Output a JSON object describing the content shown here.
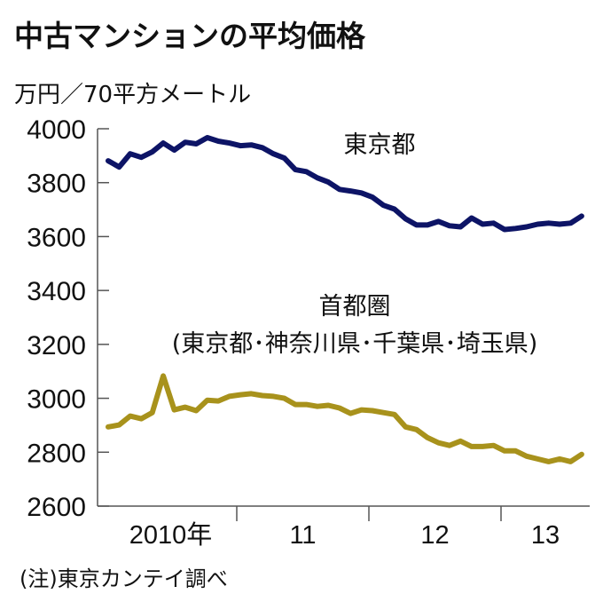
{
  "title": "中古マンションの平均価格",
  "unit_label": "万円／70平方メートル",
  "note": "(注)東京カンテイ調べ",
  "colors": {
    "tokyo": "#0d1466",
    "capital": "#a8921c",
    "axis": "#555555"
  },
  "chart_data": {
    "type": "line",
    "title": "中古マンションの平均価格",
    "ylabel": "万円／70平方メートル",
    "xlabel": "",
    "ylim": [
      2600,
      4000
    ],
    "yticks": [
      4000,
      3800,
      3600,
      3400,
      3200,
      3000,
      2800,
      2600
    ],
    "x_start": "2010-01",
    "x_unit": "month",
    "x_months_per_year": 12,
    "x_range_months": [
      0,
      44
    ],
    "year_ticks": [
      {
        "label": "2010年",
        "start_month": 0
      },
      {
        "label": "11",
        "start_month": 12
      },
      {
        "label": "12",
        "start_month": 24
      },
      {
        "label": "13",
        "start_month": 36
      }
    ],
    "grid": false,
    "series": [
      {
        "name": "東京都",
        "label_lines": [
          "東京都"
        ],
        "color": "#0d1466",
        "values": [
          3881,
          3858,
          3907,
          3894,
          3914,
          3947,
          3921,
          3950,
          3944,
          3967,
          3954,
          3947,
          3937,
          3940,
          3930,
          3907,
          3891,
          3848,
          3841,
          3818,
          3802,
          3775,
          3769,
          3762,
          3746,
          3716,
          3702,
          3666,
          3643,
          3643,
          3656,
          3640,
          3636,
          3669,
          3646,
          3650,
          3626,
          3630,
          3636,
          3646,
          3650,
          3646,
          3650,
          3676
        ]
      },
      {
        "name": "首都圏",
        "label_lines": [
          "首都圏",
          "(東京都･神奈川県･千葉県･埼玉県)"
        ],
        "color": "#a8921c",
        "values": [
          2894,
          2901,
          2934,
          2924,
          2947,
          3083,
          2957,
          2967,
          2954,
          2993,
          2990,
          3007,
          3013,
          3017,
          3010,
          3007,
          3000,
          2977,
          2977,
          2970,
          2974,
          2964,
          2944,
          2957,
          2954,
          2947,
          2940,
          2894,
          2884,
          2854,
          2835,
          2825,
          2841,
          2821,
          2821,
          2825,
          2805,
          2805,
          2785,
          2775,
          2765,
          2775,
          2765,
          2792
        ]
      }
    ],
    "annotations": [
      "(注)東京カンテイ調べ"
    ]
  }
}
